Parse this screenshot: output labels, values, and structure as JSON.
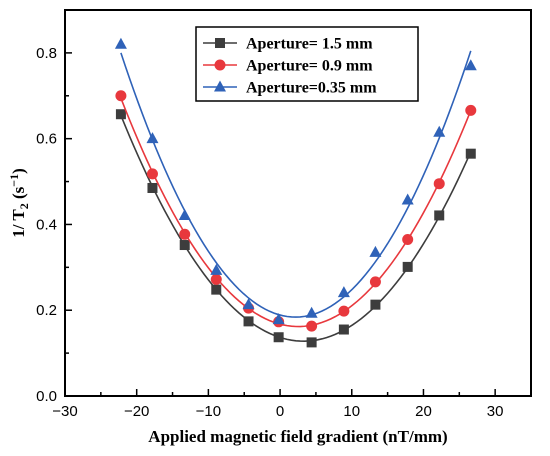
{
  "chart_data": {
    "type": "line",
    "title": "",
    "xlabel": "Applied magnetic field gradient (nT/mm)",
    "ylabel": {
      "main": "1/ T",
      "sub": "2",
      "unit_open": " (s",
      "sup": "−1",
      "unit_close": ")"
    },
    "xlim": [
      -30,
      35
    ],
    "ylim": [
      0.0,
      0.9
    ],
    "xticks": [
      -30,
      -20,
      -10,
      0,
      10,
      20,
      30
    ],
    "yticks": [
      0.0,
      0.2,
      0.4,
      0.6,
      0.8
    ],
    "xtick_labels": [
      "−30",
      "−20",
      "−10",
      "0",
      "10",
      "20",
      "30"
    ],
    "ytick_labels": [
      "0.0",
      "0.2",
      "0.4",
      "0.6",
      "0.8"
    ],
    "grid": false,
    "legend_position": "top-center",
    "x": [
      -22.2,
      -17.8,
      -13.3,
      -8.9,
      -4.4,
      -0.2,
      4.4,
      8.9,
      13.3,
      17.8,
      22.2,
      26.6
    ],
    "series": [
      {
        "name": "Aperture= 1.5  mm",
        "color": "#3d3d3d",
        "marker": "square",
        "values": [
          0.657,
          0.485,
          0.352,
          0.248,
          0.174,
          0.137,
          0.125,
          0.155,
          0.213,
          0.301,
          0.421,
          0.565
        ]
      },
      {
        "name": "Aperture= 0.9  mm",
        "color": "#e8383d",
        "marker": "circle",
        "values": [
          0.7,
          0.518,
          0.377,
          0.272,
          0.205,
          0.173,
          0.163,
          0.198,
          0.266,
          0.365,
          0.495,
          0.666
        ]
      },
      {
        "name": "Aperture=0.35 mm",
        "color": "#2f62b8",
        "marker": "triangle",
        "values": [
          0.82,
          0.6,
          0.421,
          0.293,
          0.213,
          0.178,
          0.193,
          0.241,
          0.335,
          0.457,
          0.615,
          0.77
        ]
      }
    ]
  }
}
